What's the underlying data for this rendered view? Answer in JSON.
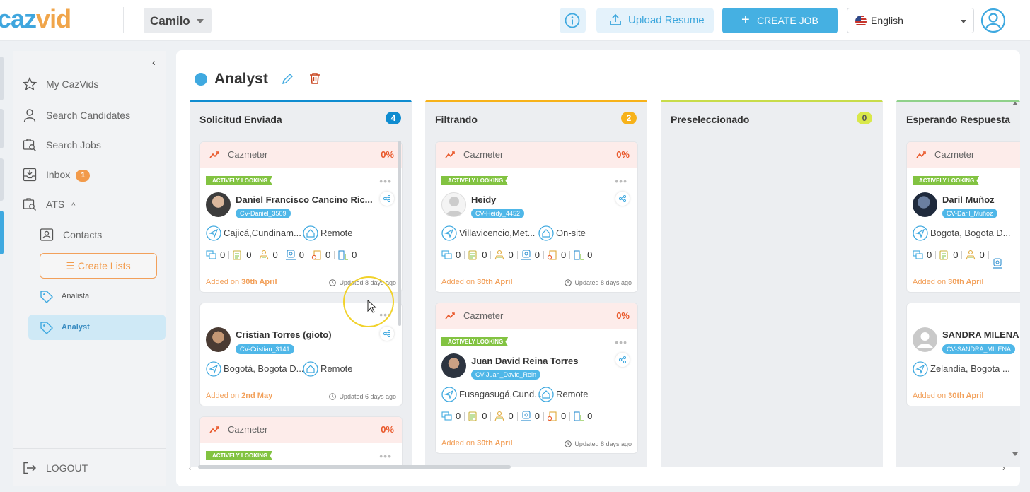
{
  "app": {
    "logo_a": "caz",
    "logo_b": "vid"
  },
  "header": {
    "user": "Camilo",
    "upload_label": "Upload Resume",
    "create_job_label": "CREATE JOB",
    "language": "English"
  },
  "sidebar": {
    "items": [
      {
        "label": "My CazVids",
        "icon": "star-icon"
      },
      {
        "label": "Search Candidates",
        "icon": "person-icon"
      },
      {
        "label": "Search Jobs",
        "icon": "job-search-icon"
      },
      {
        "label": "Inbox",
        "icon": "inbox-icon",
        "badge": "1"
      },
      {
        "label": "ATS",
        "icon": "ats-icon"
      }
    ],
    "contacts": "Contacts",
    "create_lists": "Create Lists",
    "lists": [
      "Analista",
      "Analyst"
    ],
    "logout": "LOGOUT"
  },
  "job": {
    "title": "Analyst"
  },
  "colors": {
    "accent": "#3fa9e0",
    "orange": "#f29a4a",
    "green": "#82c341"
  },
  "columns": [
    {
      "title": "Solicitud Enviada",
      "count": "4",
      "color": "#0f8cd0"
    },
    {
      "title": "Filtrando",
      "count": "2",
      "color": "#f7b21a"
    },
    {
      "title": "Preseleccionado",
      "count": "0",
      "color": "#c8dc4a"
    },
    {
      "title": "Esperando Respuesta",
      "count": "",
      "color": "#8fd18a"
    }
  ],
  "labels": {
    "cazmeter": "Cazmeter",
    "pct": "0%",
    "actively": "ACTIVELY LOOKING",
    "added_on": "Added on",
    "zero": "0"
  },
  "cards": {
    "c1": {
      "name": "Daniel Francisco Cancino Ric...",
      "cv": "CV-Daniel_3509",
      "location": "Cajicá,Cundinam...",
      "mode": "Remote",
      "added": "30th April",
      "updated": "Updated 8 days ago"
    },
    "c2": {
      "name": "Cristian Torres (gioto)",
      "cv": "CV-Cristian_3141",
      "location": "Bogotá, Bogota D...",
      "mode": "Remote",
      "added": "2nd May",
      "updated": "Updated 6 days ago"
    },
    "c4": {
      "name": "Heidy",
      "cv": "CV-Heidy_4452",
      "location": "Villavicencio,Met...",
      "mode": "On-site",
      "added": "30th April",
      "updated": "Updated 8 days ago"
    },
    "c5": {
      "name": "Juan David Reina Torres",
      "cv": "CV-Juan_David_Rein",
      "location": "Fusagasugá,Cund...",
      "mode": "Remote",
      "added": "30th April",
      "updated": "Updated 8 days ago"
    },
    "c6": {
      "name": "Daril Muñoz",
      "cv": "CV-Daril_Muñoz",
      "location": "Bogota, Bogota D...",
      "added": "30th April"
    },
    "c7": {
      "name": "SANDRA MILENA",
      "cv": "CV-SANDRA_MILENA",
      "location": "Zelandia, Bogota ...",
      "added": "30th April"
    }
  }
}
